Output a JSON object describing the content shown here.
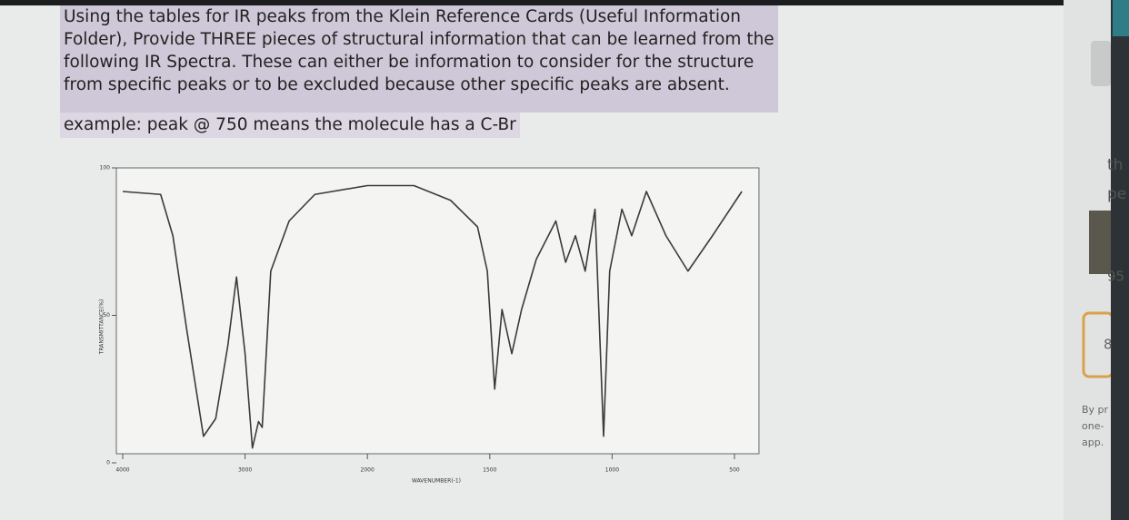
{
  "question": {
    "lines": [
      "Using the tables for IR peaks from the Klein Reference Cards (Useful Information",
      "Folder), Provide THREE pieces of structural information that can be learned from the",
      "following IR Spectra.  These can either be information to consider for the structure",
      "from specific peaks or to be excluded because other specific peaks are absent."
    ],
    "example": "example:  peak @ 750 means the molecule has a C-Br"
  },
  "side": {
    "texts": [
      "th",
      "pe",
      "95",
      "8",
      "By pr",
      "one-",
      "app."
    ]
  },
  "chart_data": {
    "type": "line",
    "xlabel": "WAVENUMBER(-1)",
    "ylabel": "TRANSMITTANCE(%)",
    "x": [
      4000,
      3690,
      3590,
      3480,
      3340,
      3240,
      3140,
      3070,
      3000,
      2940,
      2890,
      2860,
      2790,
      2640,
      2430,
      2000,
      1810,
      1660,
      1550,
      1510,
      1480,
      1450,
      1410,
      1370,
      1310,
      1230,
      1190,
      1150,
      1110,
      1070,
      1035,
      1010,
      960,
      920,
      860,
      780,
      690,
      590,
      470
    ],
    "series": [
      {
        "name": "spectrum",
        "color": "#3a3a3a",
        "values": [
          92,
          91,
          77,
          46,
          9,
          15,
          40,
          63,
          37,
          5,
          14,
          12,
          65,
          82,
          91,
          94,
          94,
          89,
          80,
          65,
          25,
          52,
          37,
          52,
          69,
          82,
          68,
          77,
          65,
          86,
          9,
          65,
          86,
          77,
          92,
          77,
          65,
          77,
          92
        ]
      }
    ],
    "xlim": [
      4000,
      400
    ],
    "xticks": [
      4000,
      3000,
      2000,
      1500,
      1000,
      500
    ],
    "ylim": [
      0,
      100
    ],
    "yticks": [
      0,
      50,
      100
    ]
  }
}
